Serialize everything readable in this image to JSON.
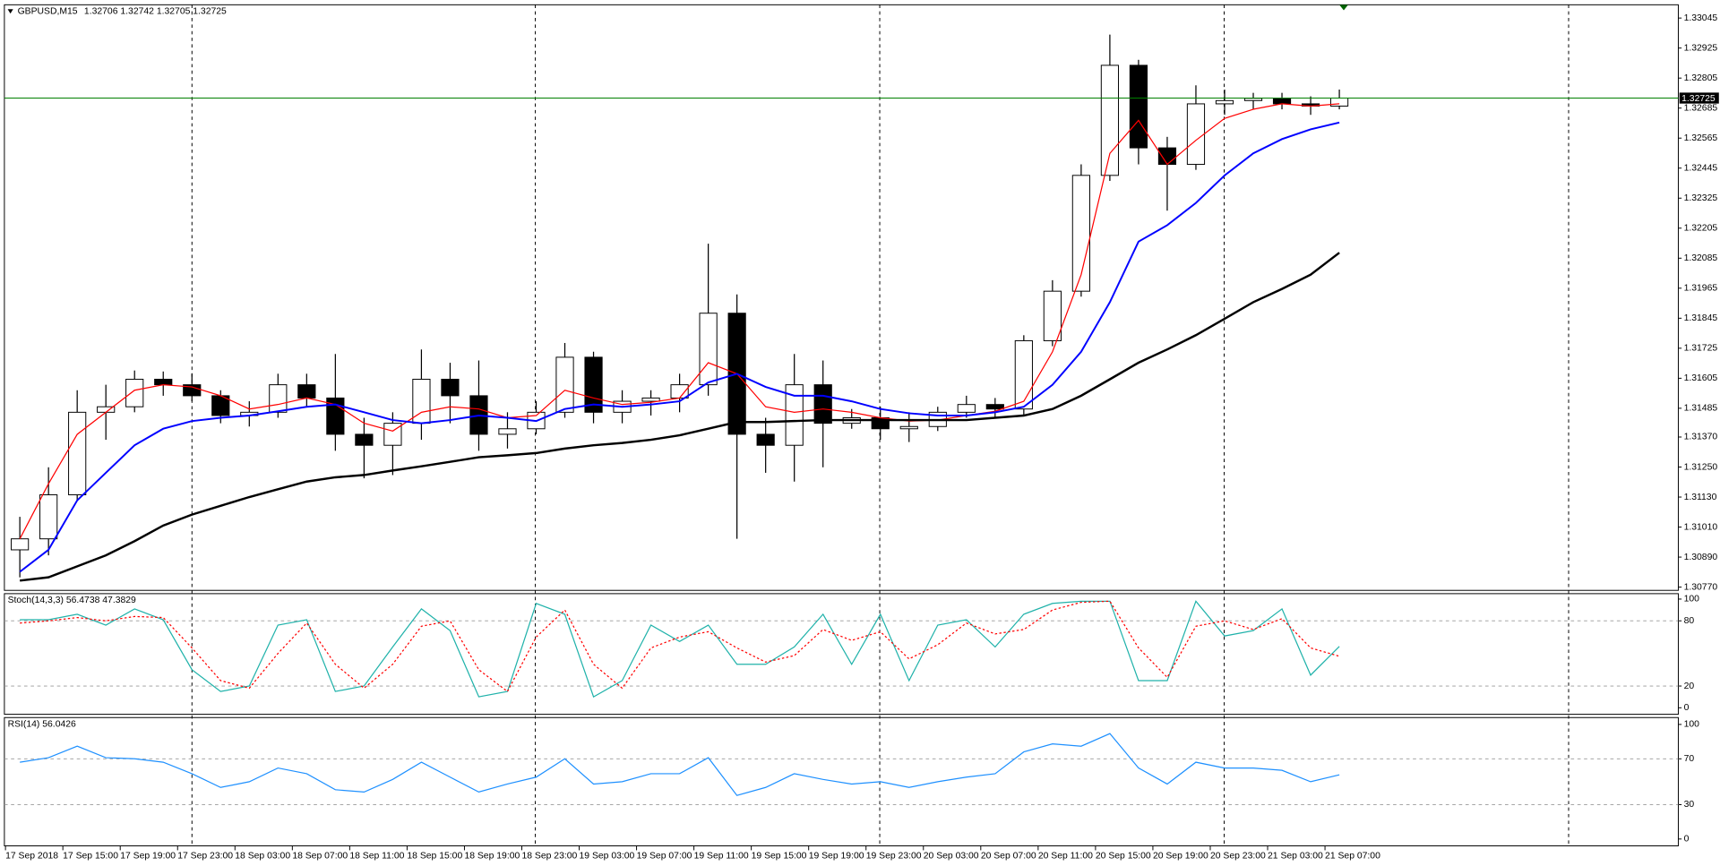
{
  "chart_data": [
    {
      "type": "candlestick",
      "title": "GBPUSD,M15",
      "subtitle": "1.32706 1.32742 1.32705 1.32725",
      "categories": [
        "17 Sep 2018",
        null,
        "17 Sep 15:00",
        null,
        "17 Sep 19:00",
        null,
        "17 Sep 23:00",
        null,
        "18 Sep 03:00",
        null,
        "18 Sep 07:00",
        null,
        "18 Sep 11:00",
        null,
        "18 Sep 15:00",
        null,
        "18 Sep 19:00",
        null,
        "18 Sep 23:00",
        null,
        "19 Sep 03:00",
        null,
        "19 Sep 07:00",
        null,
        "19 Sep 11:00",
        null,
        "19 Sep 15:00",
        null,
        "19 Sep 19:00",
        null,
        "19 Sep 23:00",
        null,
        "20 Sep 03:00",
        null,
        "20 Sep 07:00",
        null,
        "20 Sep 11:00",
        null,
        "20 Sep 15:00",
        null,
        "20 Sep 19:00",
        null,
        "20 Sep 23:00",
        null,
        "21 Sep 03:00",
        null,
        "21 Sep 07:00"
      ],
      "open": [
        1.30919,
        1.30963,
        1.31139,
        1.31469,
        1.31491,
        1.31601,
        1.31579,
        1.31535,
        1.31456,
        1.31469,
        1.31579,
        1.31526,
        1.31381,
        1.31337,
        1.31425,
        1.31601,
        1.31535,
        1.31381,
        1.31403,
        1.31469,
        1.31689,
        1.31469,
        1.31513,
        1.31526,
        1.31579,
        1.31865,
        1.31381,
        1.31337,
        1.31579,
        1.31425,
        1.31447,
        1.31403,
        1.31412,
        1.31469,
        1.315,
        1.31482,
        1.31755,
        1.31953,
        1.32416,
        1.32856,
        1.32526,
        1.3246,
        1.32702,
        1.32715,
        1.32724,
        1.32702,
        1.32693
      ],
      "high": [
        1.31051,
        1.31249,
        1.31557,
        1.31579,
        1.31636,
        1.31632,
        1.31623,
        1.31557,
        1.31513,
        1.31623,
        1.31623,
        1.31702,
        1.31447,
        1.31469,
        1.3172,
        1.31667,
        1.31676,
        1.31469,
        1.31513,
        1.31746,
        1.31711,
        1.31557,
        1.31557,
        1.31623,
        1.32143,
        1.3194,
        1.31447,
        1.31702,
        1.31676,
        1.31482,
        1.31491,
        1.31469,
        1.31491,
        1.31535,
        1.31526,
        1.31777,
        1.31997,
        1.3246,
        1.32979,
        1.32878,
        1.3257,
        1.32776,
        1.32759,
        1.32746,
        1.32746,
        1.32732,
        1.32759
      ],
      "low": [
        1.30809,
        1.30897,
        1.31117,
        1.31359,
        1.31469,
        1.31535,
        1.31513,
        1.31425,
        1.31412,
        1.31447,
        1.31491,
        1.31315,
        1.31205,
        1.31218,
        1.31359,
        1.31425,
        1.31315,
        1.31324,
        1.31381,
        1.31447,
        1.31425,
        1.31425,
        1.31456,
        1.31469,
        1.31535,
        1.30963,
        1.31227,
        1.31192,
        1.31249,
        1.31403,
        1.31359,
        1.3135,
        1.31394,
        1.31447,
        1.31447,
        1.31456,
        1.31733,
        1.31931,
        1.32394,
        1.3246,
        1.32275,
        1.32438,
        1.32658,
        1.3268,
        1.3268,
        1.32658,
        1.3268
      ],
      "close": [
        1.30963,
        1.31139,
        1.31469,
        1.31491,
        1.31601,
        1.31579,
        1.31535,
        1.31456,
        1.31469,
        1.31579,
        1.31526,
        1.31381,
        1.31337,
        1.31425,
        1.31601,
        1.31535,
        1.31381,
        1.31403,
        1.31469,
        1.31689,
        1.31469,
        1.31513,
        1.31526,
        1.31579,
        1.31865,
        1.31381,
        1.31337,
        1.31579,
        1.31425,
        1.31447,
        1.31403,
        1.31412,
        1.31469,
        1.315,
        1.31482,
        1.31755,
        1.31953,
        1.32416,
        1.32856,
        1.32526,
        1.3246,
        1.32702,
        1.32715,
        1.32724,
        1.32702,
        1.32693,
        1.32725
      ],
      "lines": [
        {
          "color": "#ff0000",
          "values": [
            1.30963,
            1.31183,
            1.31381,
            1.31469,
            1.31557,
            1.31579,
            1.3157,
            1.31535,
            1.31482,
            1.315,
            1.31526,
            1.315,
            1.31425,
            1.31394,
            1.31469,
            1.31491,
            1.31482,
            1.31447,
            1.31456,
            1.31557,
            1.31526,
            1.315,
            1.31509,
            1.31526,
            1.31667,
            1.31623,
            1.31491,
            1.31469,
            1.31482,
            1.31469,
            1.31447,
            1.31434,
            1.31438,
            1.31456,
            1.31473,
            1.31513,
            1.31711,
            1.32019,
            1.32504,
            1.32636,
            1.3246,
            1.32556,
            1.32644,
            1.3268,
            1.32702,
            1.32693,
            1.32702
          ]
        },
        {
          "color": "#0000ff",
          "values": [
            1.30831,
            1.30919,
            1.31117,
            1.31227,
            1.31337,
            1.31403,
            1.31434,
            1.31447,
            1.31456,
            1.31473,
            1.31491,
            1.315,
            1.31469,
            1.31438,
            1.31425,
            1.31438,
            1.31456,
            1.31447,
            1.31434,
            1.31482,
            1.315,
            1.31491,
            1.315,
            1.31513,
            1.31588,
            1.31623,
            1.3157,
            1.31535,
            1.31535,
            1.31513,
            1.31482,
            1.31465,
            1.31456,
            1.31456,
            1.31469,
            1.31491,
            1.31579,
            1.31711,
            1.31909,
            1.32151,
            1.32217,
            1.32306,
            1.32416,
            1.32504,
            1.32561,
            1.326,
            1.32627
          ]
        },
        {
          "color": "#000000",
          "values": [
            1.30796,
            1.30809,
            1.30853,
            1.30897,
            1.30954,
            1.31016,
            1.3106,
            1.31095,
            1.3113,
            1.31161,
            1.31192,
            1.31209,
            1.31218,
            1.31236,
            1.31253,
            1.31271,
            1.31289,
            1.31297,
            1.31306,
            1.31324,
            1.31337,
            1.31346,
            1.31359,
            1.31377,
            1.31403,
            1.3143,
            1.3143,
            1.31434,
            1.31438,
            1.31438,
            1.31438,
            1.31438,
            1.31438,
            1.31438,
            1.31447,
            1.31456,
            1.31482,
            1.31535,
            1.31601,
            1.31667,
            1.3172,
            1.31777,
            1.31843,
            1.31909,
            1.31962,
            1.32019,
            1.32107
          ]
        }
      ],
      "price_line": {
        "value": 1.32725,
        "label": "1.32725",
        "color": "#008000"
      },
      "ylim": [
        1.30757,
        1.33098
      ],
      "yticks": [
        {
          "value": 1.3077,
          "label": "1.30770"
        },
        {
          "value": 1.3089,
          "label": "1.30890"
        },
        {
          "value": 1.3101,
          "label": "1.31010"
        },
        {
          "value": 1.3113,
          "label": "1.31130"
        },
        {
          "value": 1.3125,
          "label": "1.31250"
        },
        {
          "value": 1.3137,
          "label": "1.31370"
        },
        1.31485,
        {
          "value": 1.31605,
          "label": "1.31605"
        },
        {
          "value": 1.31725,
          "label": "1.31725"
        },
        {
          "value": 1.31845,
          "label": "1.31845"
        },
        {
          "value": 1.31965,
          "label": "1.31965"
        },
        {
          "value": 1.32085,
          "label": "1.32085"
        },
        {
          "value": 1.32205,
          "label": "1.32205"
        },
        {
          "value": 1.32325,
          "label": "1.32325"
        },
        {
          "value": 1.32445,
          "label": "1.32445"
        },
        {
          "value": 1.32565,
          "label": "1.32565"
        },
        {
          "value": 1.32685,
          "label": "1.32685"
        },
        {
          "value": 1.32805,
          "label": "1.32805"
        },
        {
          "value": 1.32925,
          "label": "1.32925"
        },
        {
          "value": 1.33045,
          "label": "1.33045"
        }
      ],
      "grid": false
    },
    {
      "type": "line",
      "title": "Stoch(14,3,3) 56.4738 47.3829",
      "series": [
        {
          "color": "#20b2aa",
          "values": [
            81,
            81,
            86,
            76,
            91,
            81,
            35,
            15,
            20,
            76,
            81,
            15,
            20,
            56,
            91,
            71,
            10,
            15,
            96,
            86,
            10,
            25,
            76,
            61,
            76,
            40,
            40,
            56,
            86,
            40,
            86,
            25,
            76,
            81,
            56,
            86,
            96,
            98,
            98,
            25,
            25,
            98,
            66,
            71,
            91,
            30,
            56.4738
          ]
        },
        {
          "color": "#ff0000",
          "dash": true,
          "values": [
            78,
            80,
            83,
            80,
            84,
            83,
            55,
            25,
            18,
            50,
            78,
            40,
            18,
            40,
            75,
            80,
            35,
            15,
            65,
            90,
            40,
            18,
            55,
            65,
            70,
            55,
            42,
            48,
            72,
            62,
            70,
            45,
            58,
            78,
            68,
            72,
            90,
            97,
            98,
            55,
            28,
            75,
            80,
            72,
            82,
            55,
            47.3829
          ]
        }
      ],
      "ylim": [
        -6,
        105
      ],
      "yticks": [
        100,
        80,
        20,
        0
      ],
      "grid": true
    },
    {
      "type": "line",
      "title": "RSI(14) 56.0426",
      "series": [
        {
          "color": "#1e90ff",
          "values": [
            67,
            71,
            81,
            71,
            70,
            67,
            57,
            45,
            50,
            62,
            57,
            43,
            41,
            52,
            67,
            54,
            41,
            48,
            54,
            70,
            48,
            50,
            57,
            57,
            71,
            38,
            45,
            57,
            52,
            48,
            50,
            45,
            50,
            54,
            57,
            76,
            83,
            81,
            92,
            62,
            48,
            67,
            62,
            62,
            60,
            50,
            56.0426
          ]
        }
      ],
      "ylim": [
        -6,
        106
      ],
      "yticks": [
        100,
        70,
        30,
        0
      ],
      "grid": true
    }
  ]
}
